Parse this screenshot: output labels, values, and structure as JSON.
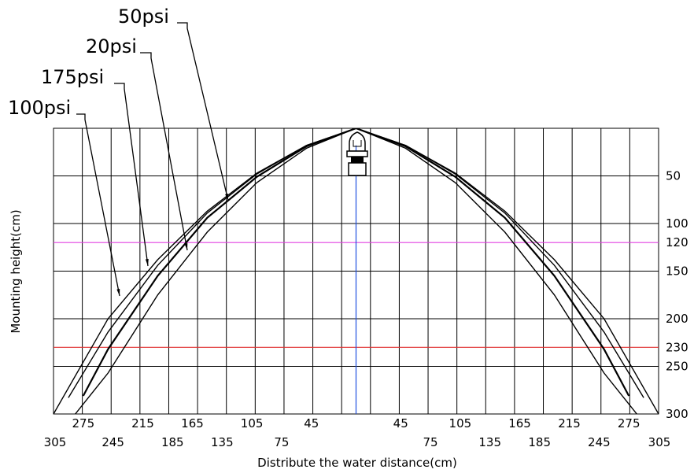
{
  "chart_data": {
    "type": "line",
    "title": "",
    "xlabel": "Distribute the water distance(cm)",
    "ylabel": "Mounting height(cm)",
    "xlim": [
      -305,
      305
    ],
    "ylim": [
      0,
      300
    ],
    "y_inverted": true,
    "grid": true,
    "x_tick_labels_row1": [
      "275",
      "215",
      "165",
      "105",
      "45",
      "45",
      "105",
      "165",
      "215",
      "275"
    ],
    "x_tick_values_row1": [
      -275,
      -215,
      -165,
      -105,
      -45,
      45,
      105,
      165,
      215,
      275
    ],
    "x_tick_labels_row2": [
      "305",
      "245",
      "185",
      "135",
      "75",
      "75",
      "135",
      "185",
      "245",
      "305"
    ],
    "x_tick_values_row2": [
      -305,
      -245,
      -185,
      -135,
      -75,
      75,
      135,
      185,
      245,
      305
    ],
    "y_tick_labels": [
      "50",
      "100",
      "120",
      "150",
      "200",
      "230",
      "250",
      "300"
    ],
    "y_tick_values": [
      50,
      100,
      120,
      150,
      200,
      230,
      250,
      300
    ],
    "reference_lines": [
      {
        "y": 120,
        "color": "#e040e0"
      },
      {
        "y": 230,
        "color": "#e03030"
      }
    ],
    "center_line_color": "#2050e0",
    "series": [
      {
        "name": "50psi",
        "x": [
          -150,
          -100,
          -50,
          0,
          50,
          100,
          150,
          200,
          250,
          275
        ],
        "y": [
          94,
          51,
          19,
          0,
          19,
          51,
          94,
          155,
          232,
          281
        ]
      },
      {
        "name": "20psi",
        "x": [
          -150,
          -100,
          -50,
          0,
          50,
          100,
          150,
          200,
          250,
          283
        ],
        "y": [
          109,
          57,
          21,
          0,
          21,
          57,
          109,
          175,
          257,
          300
        ]
      },
      {
        "name": "175psi",
        "x": [
          -150,
          -100,
          -50,
          0,
          50,
          100,
          150,
          200,
          250,
          290
        ],
        "y": [
          89,
          48,
          18,
          0,
          18,
          48,
          89,
          144,
          214,
          283
        ]
      },
      {
        "name": "100psi",
        "x": [
          -150,
          -100,
          -50,
          0,
          50,
          100,
          150,
          200,
          250,
          305
        ],
        "y": [
          87,
          47,
          18,
          0,
          18,
          47,
          87,
          138,
          200,
          300
        ]
      }
    ]
  }
}
